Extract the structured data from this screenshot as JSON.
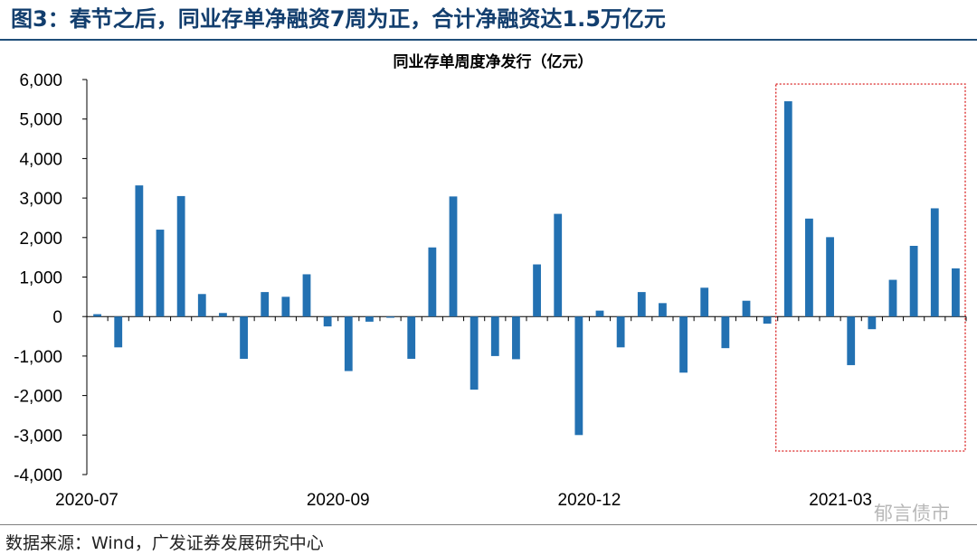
{
  "figure": {
    "title": "图3：春节之后，同业存单净融资7周为正，合计净融资达1.5万亿元",
    "source": "数据来源：Wind，广发证券发展研究中心",
    "watermark": "郁言债市"
  },
  "colors": {
    "bar": "#2371b2",
    "title": "#123e6e",
    "highlight_box": "#d92020"
  },
  "chart_data": {
    "type": "bar",
    "title": "同业存单周度净发行（亿元）",
    "ylabel": "",
    "xlabel": "",
    "ylim": [
      -4000,
      6000
    ],
    "yticks": [
      6000,
      5000,
      4000,
      3000,
      2000,
      1000,
      0,
      -1000,
      -2000,
      -3000,
      -4000
    ],
    "ytick_labels": [
      "6,000",
      "5,000",
      "4,000",
      "3,000",
      "2,000",
      "1,000",
      "0",
      "-1,000",
      "-2,000",
      "-3,000",
      "-4,000"
    ],
    "x_tick_labels": [
      {
        "index": 0,
        "label": "2020-07"
      },
      {
        "index": 12,
        "label": "2020-09"
      },
      {
        "index": 24,
        "label": "2020-12"
      },
      {
        "index": 36,
        "label": "2021-03"
      }
    ],
    "highlight": {
      "from_index": 33,
      "to_index": 42,
      "style": "dotted-red-box"
    },
    "values": [
      60,
      -780,
      3320,
      2200,
      3050,
      570,
      90,
      -1070,
      620,
      500,
      1070,
      -250,
      -1380,
      -130,
      -30,
      -1070,
      1750,
      3040,
      -1850,
      -1000,
      -1080,
      1320,
      2600,
      -3000,
      150,
      -780,
      620,
      340,
      -1420,
      730,
      -800,
      400,
      -180,
      5450,
      2480,
      2010,
      -1230,
      -320,
      930,
      1790,
      2740,
      1220
    ],
    "grid": false,
    "legend": "none"
  }
}
